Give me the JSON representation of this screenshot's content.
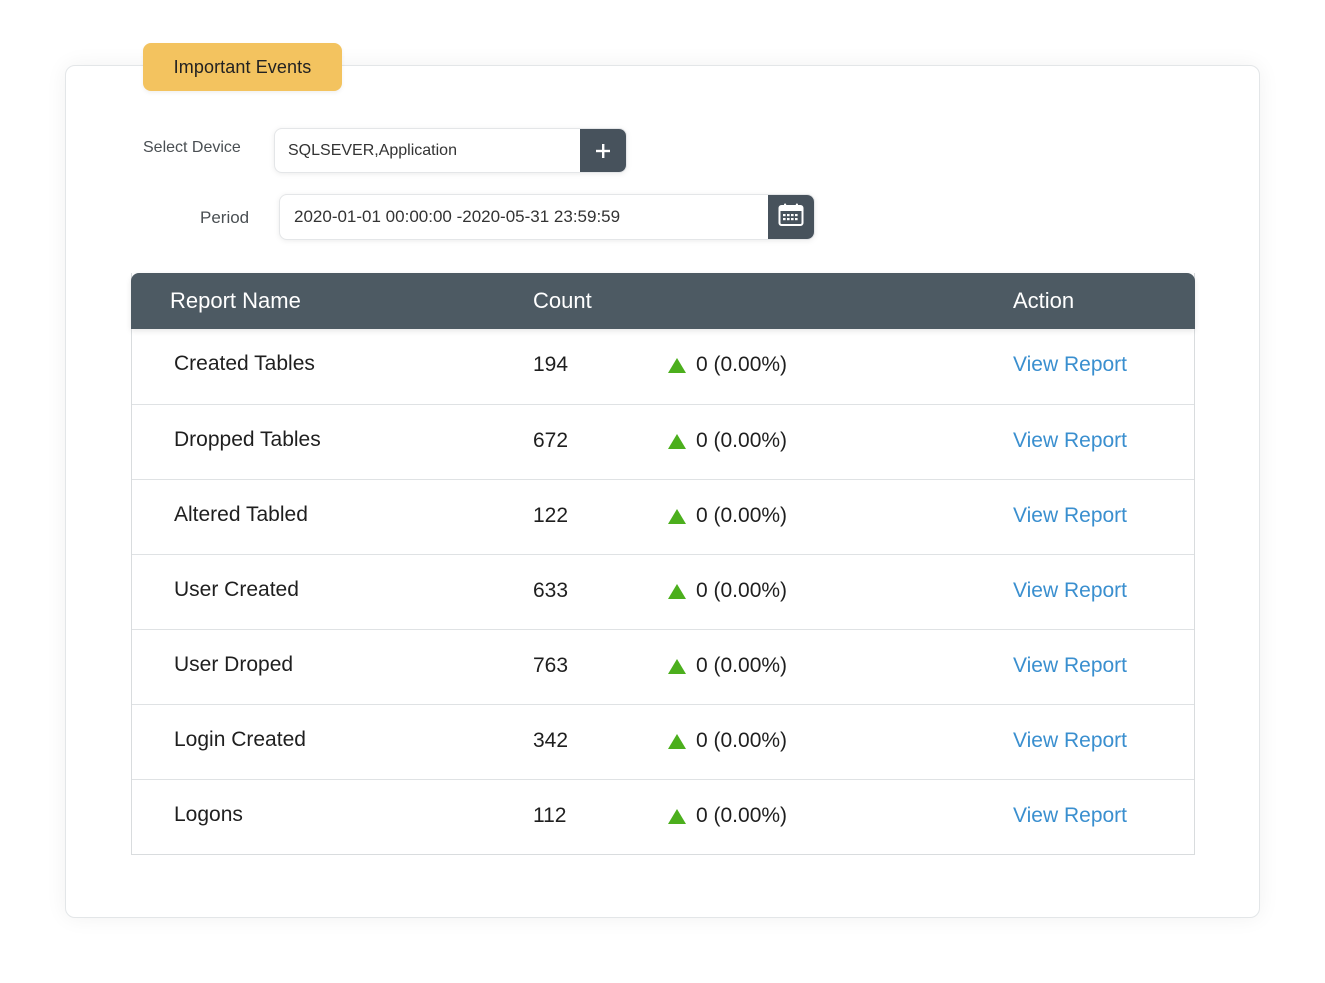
{
  "tab": {
    "label": "Important Events"
  },
  "filters": {
    "device_label": "Select Device",
    "device_value": "SQLSEVER,Application",
    "period_label": "Period",
    "period_value": "2020-01-01 00:00:00 -2020-05-31 23:59:59"
  },
  "icons": {
    "add": "plus-icon",
    "calendar": "calendar-icon",
    "trend": "triangle-up-icon"
  },
  "colors": {
    "tab_bg": "#f3c35f",
    "header_bg": "#4d5a63",
    "button_bg": "#47525c",
    "trend_up": "#4caf1d",
    "link": "#3a8fcf"
  },
  "table": {
    "headers": {
      "name": "Report Name",
      "count": "Count",
      "action": "Action"
    },
    "rows": [
      {
        "name": "Created Tables",
        "count": "194",
        "change": "0 (0.00%)",
        "action": "View Report"
      },
      {
        "name": "Dropped Tables",
        "count": "672",
        "change": "0 (0.00%)",
        "action": "View Report"
      },
      {
        "name": "Altered Tabled",
        "count": "122",
        "change": "0 (0.00%)",
        "action": "View Report"
      },
      {
        "name": "User Created",
        "count": "633",
        "change": "0 (0.00%)",
        "action": "View Report"
      },
      {
        "name": "User Droped",
        "count": "763",
        "change": "0 (0.00%)",
        "action": "View Report"
      },
      {
        "name": "Login Created",
        "count": "342",
        "change": "0 (0.00%)",
        "action": "View Report"
      },
      {
        "name": "Logons",
        "count": "112",
        "change": "0 (0.00%)",
        "action": "View Report"
      }
    ]
  }
}
